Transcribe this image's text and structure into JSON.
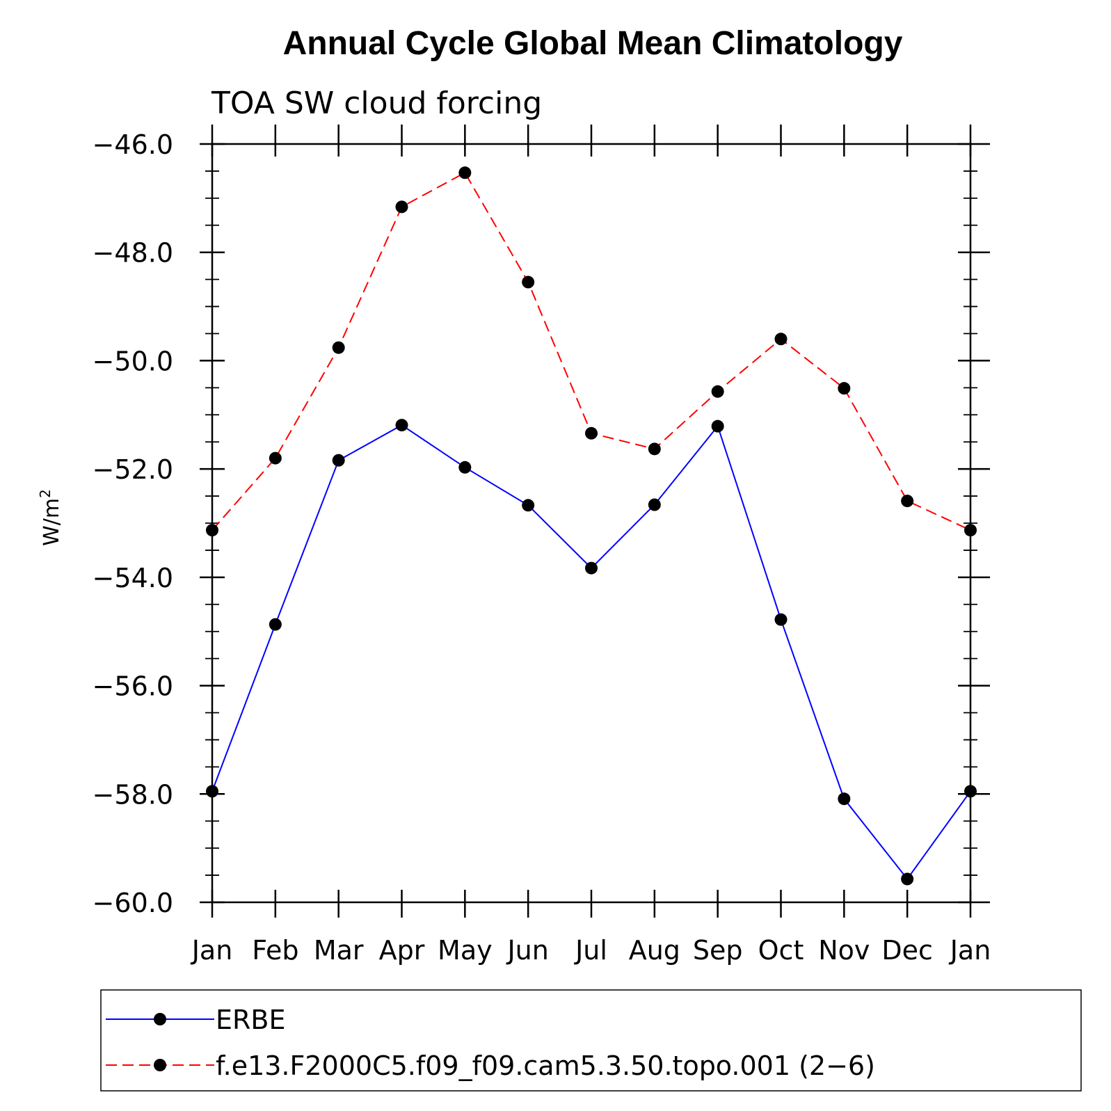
{
  "chart_data": {
    "type": "line",
    "title": "Annual Cycle Global Mean Climatology",
    "subtitle": "TOA SW cloud forcing",
    "ylabel": "W/m",
    "ylabel_sup": "2",
    "categories": [
      "Jan",
      "Feb",
      "Mar",
      "Apr",
      "May",
      "Jun",
      "Jul",
      "Aug",
      "Sep",
      "Oct",
      "Nov",
      "Dec",
      "Jan"
    ],
    "ylim": [
      -60.0,
      -46.0
    ],
    "yticks": [
      -46.0,
      -48.0,
      -50.0,
      -52.0,
      -54.0,
      -56.0,
      -58.0,
      -60.0
    ],
    "ytick_labels": [
      "−46.0",
      "−48.0",
      "−50.0",
      "−52.0",
      "−54.0",
      "−56.0",
      "−58.0",
      "−60.0"
    ],
    "series": [
      {
        "name": "ERBE",
        "color": "#0000ff",
        "style": "solid",
        "values": [
          -57.95,
          -54.87,
          -51.84,
          -51.19,
          -51.97,
          -52.67,
          -53.83,
          -52.66,
          -51.21,
          -54.78,
          -58.09,
          -59.57,
          -57.95
        ]
      },
      {
        "name": "f.e13.F2000C5.f09_f09.cam5.3.50.topo.001 (2−6)",
        "color": "#ff0000",
        "style": "dashed",
        "values": [
          -53.13,
          -51.8,
          -49.76,
          -47.16,
          -46.53,
          -48.55,
          -51.34,
          -51.63,
          -50.57,
          -49.6,
          -50.51,
          -52.59,
          -53.13
        ]
      }
    ],
    "grid": false,
    "legend_position": "bottom"
  }
}
